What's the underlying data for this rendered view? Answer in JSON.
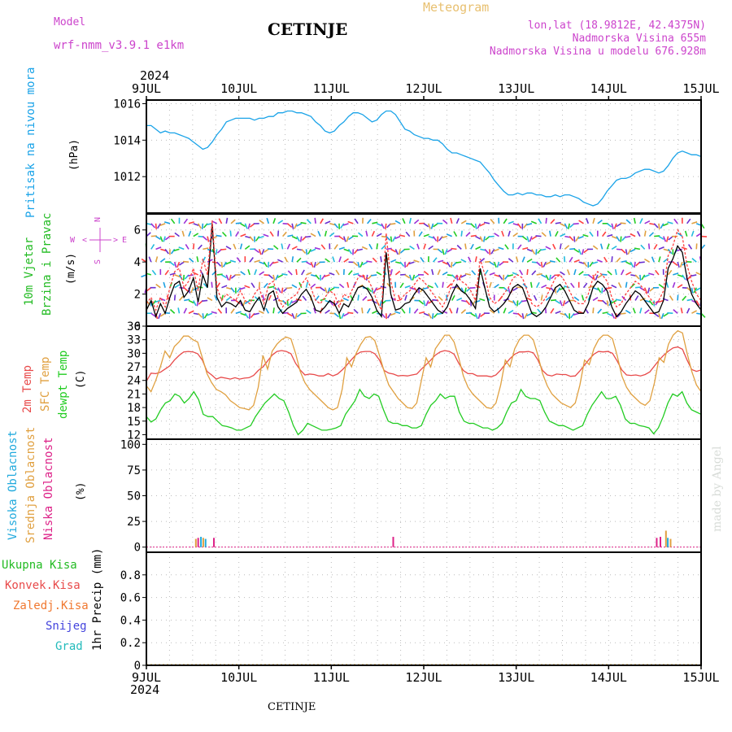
{
  "header": {
    "model_label": "Model",
    "model_name": "wrf-nmm_v3.9.1  e1km",
    "title": "CETINJE",
    "meteogram": "Meteogram",
    "lonlat": "lon,lat (18.9812E, 42.4375N)",
    "altitude": "Nadmorska Visina 655m",
    "model_altitude": "Nadmorska Visina u modelu 676.928m",
    "year_top": "2024",
    "year_bottom": "2024",
    "footer": "CETINJE",
    "watermark": "made by Angel"
  },
  "colors": {
    "pressure": "#1aa3e8",
    "temp2m": "#e84a4a",
    "sfc": "#e0a040",
    "dew": "#22cc22",
    "windspd": "#000000",
    "gust": "#ff4040",
    "label_pressure": "#1aa3e8",
    "label_wind": "#22bb22",
    "label_purple": "#cc44cc",
    "label_cloud_high": "#22aadd",
    "label_cloud_mid": "#e0a040",
    "label_cloud_low": "#dd2288"
  },
  "chart_data": [
    {
      "type": "line",
      "panel": "pressure",
      "ylabel_left": "Pritisak na nivou mora",
      "unit": "(hPa)",
      "x_ticks": [
        "9JUL",
        "10JUL",
        "11JUL",
        "12JUL",
        "13JUL",
        "14JUL",
        "15JUL"
      ],
      "ylim": [
        1010,
        1016.2
      ],
      "y_ticks": [
        1012,
        1014,
        1016
      ],
      "series": [
        {
          "key": "pressure",
          "values": [
            1014.8,
            1014.8,
            1014.6,
            1014.4,
            1014.5,
            1014.4,
            1014.4,
            1014.3,
            1014.2,
            1014.1,
            1013.9,
            1013.7,
            1013.5,
            1013.6,
            1013.9,
            1014.3,
            1014.6,
            1015.0,
            1015.1,
            1015.2,
            1015.2,
            1015.2,
            1015.2,
            1015.1,
            1015.2,
            1015.2,
            1015.3,
            1015.3,
            1015.5,
            1015.5,
            1015.6,
            1015.6,
            1015.5,
            1015.5,
            1015.4,
            1015.3,
            1015.0,
            1014.8,
            1014.5,
            1014.4,
            1014.5,
            1014.8,
            1015.0,
            1015.3,
            1015.5,
            1015.5,
            1015.4,
            1015.2,
            1015.0,
            1015.1,
            1015.4,
            1015.6,
            1015.6,
            1015.4,
            1015.0,
            1014.6,
            1014.5,
            1014.3,
            1014.2,
            1014.1,
            1014.1,
            1014.0,
            1014.0,
            1013.8,
            1013.5,
            1013.3,
            1013.3,
            1013.2,
            1013.1,
            1013.0,
            1012.9,
            1012.8,
            1012.5,
            1012.2,
            1011.8,
            1011.5,
            1011.2,
            1011.0,
            1011.0,
            1011.1,
            1011.0,
            1011.1,
            1011.1,
            1011.0,
            1011.0,
            1010.9,
            1010.9,
            1011.0,
            1010.9,
            1011.0,
            1011.0,
            1010.9,
            1010.8,
            1010.6,
            1010.5,
            1010.4,
            1010.5,
            1010.8,
            1011.2,
            1011.5,
            1011.8,
            1011.9,
            1011.9,
            1012.0,
            1012.2,
            1012.3,
            1012.4,
            1012.4,
            1012.3,
            1012.2,
            1012.3,
            1012.6,
            1013.0,
            1013.3,
            1013.4,
            1013.3,
            1013.2,
            1013.2,
            1013.1
          ]
        }
      ]
    },
    {
      "type": "line",
      "panel": "wind",
      "ylabel_left_1": "10m Vjetar",
      "ylabel_left_2": "Brzina i Pravac",
      "unit": "(m/s)",
      "compass": {
        "n": "N",
        "s": "S",
        "w": "W",
        "e": "E",
        "arrow_left": "<",
        "arrow_right": ">"
      },
      "ylim": [
        0,
        7
      ],
      "y_ticks": [
        0,
        2,
        4,
        6
      ],
      "series": [
        {
          "key": "windspd",
          "values": [
            1.0,
            1.6,
            0.6,
            1.4,
            0.8,
            1.8,
            2.6,
            2.8,
            1.8,
            2.2,
            3.0,
            1.5,
            3.2,
            2.4,
            6.4,
            1.8,
            1.2,
            1.5,
            1.4,
            1.2,
            1.6,
            1.0,
            0.9,
            1.4,
            1.8,
            1.0,
            2.0,
            2.2,
            1.2,
            0.8,
            1.1,
            1.3,
            1.5,
            2.0,
            2.3,
            1.8,
            1.0,
            0.9,
            1.2,
            1.6,
            1.4,
            0.8,
            1.4,
            1.2,
            1.8,
            2.4,
            2.5,
            2.3,
            1.8,
            1.0,
            0.6,
            4.6,
            2.0,
            1.0,
            1.1,
            1.4,
            1.5,
            2.0,
            2.4,
            2.2,
            1.8,
            1.4,
            1.0,
            0.8,
            1.2,
            2.0,
            2.6,
            2.2,
            2.0,
            1.6,
            1.1,
            3.6,
            2.4,
            1.2,
            0.9,
            1.1,
            1.4,
            1.8,
            2.4,
            2.6,
            2.4,
            1.6,
            0.8,
            0.6,
            0.8,
            1.2,
            1.8,
            2.4,
            2.6,
            2.2,
            1.6,
            1.0,
            0.8,
            0.8,
            1.4,
            2.4,
            2.8,
            2.6,
            2.2,
            1.2,
            0.6,
            0.9,
            1.4,
            1.8,
            2.2,
            2.0,
            1.6,
            1.2,
            0.8,
            0.9,
            1.6,
            3.6,
            4.2,
            5.0,
            4.6,
            3.0,
            2.0,
            1.4,
            1.0
          ],
          "name": ""
        },
        {
          "key": "gust",
          "values": [
            1.4,
            1.8,
            1.0,
            1.8,
            1.2,
            2.4,
            3.4,
            3.6,
            2.4,
            2.8,
            3.6,
            2.2,
            4.2,
            3.2,
            6.6,
            2.4,
            1.6,
            2.0,
            1.8,
            1.6,
            2.2,
            1.6,
            1.4,
            2.0,
            2.4,
            1.4,
            2.6,
            2.8,
            1.8,
            1.2,
            1.6,
            1.8,
            2.0,
            2.6,
            3.0,
            2.4,
            1.6,
            1.4,
            1.8,
            2.2,
            2.0,
            1.2,
            2.0,
            1.8,
            2.4,
            3.0,
            3.2,
            3.0,
            2.4,
            1.6,
            1.0,
            5.8,
            2.8,
            1.6,
            1.6,
            2.0,
            2.2,
            2.6,
            3.0,
            2.8,
            2.4,
            2.0,
            1.6,
            1.2,
            1.8,
            2.6,
            3.2,
            2.8,
            2.6,
            2.2,
            1.6,
            4.2,
            3.2,
            1.8,
            1.4,
            1.6,
            2.0,
            2.4,
            3.0,
            3.2,
            3.0,
            2.2,
            1.4,
            1.2,
            1.4,
            1.8,
            2.4,
            3.0,
            3.2,
            2.8,
            2.2,
            1.6,
            1.4,
            1.4,
            2.0,
            3.0,
            3.4,
            3.2,
            2.8,
            1.8,
            1.2,
            1.4,
            2.0,
            2.4,
            2.8,
            2.6,
            2.2,
            1.8,
            1.4,
            1.6,
            2.2,
            4.4,
            5.0,
            6.0,
            5.6,
            3.8,
            2.8,
            2.0,
            1.6
          ]
        }
      ]
    },
    {
      "type": "line",
      "panel": "temperature",
      "ylabel_left_1": "2m Temp",
      "ylabel_left_2": "SFC Temp",
      "ylabel_left_3": "dewpt Temp",
      "unit": "(C)",
      "ylim": [
        11,
        36
      ],
      "y_ticks": [
        12,
        15,
        18,
        21,
        24,
        27,
        30,
        33,
        36
      ],
      "series": [
        {
          "key": "temp2m",
          "values": [
            23.8,
            25.6,
            25.5,
            25.8,
            26.5,
            27.2,
            28.5,
            29.5,
            30.3,
            30.4,
            30.3,
            29.9,
            28.5,
            26.0,
            25.2,
            24.3,
            24.7,
            24.5,
            24.3,
            24.6,
            24.3,
            24.5,
            24.6,
            25.1,
            26.2,
            27.0,
            28.3,
            29.6,
            30.4,
            30.6,
            30.4,
            29.9,
            27.8,
            26.3,
            25.2,
            25.4,
            25.3,
            25.0,
            25.0,
            25.5,
            25.0,
            25.4,
            26.3,
            27.4,
            28.6,
            29.7,
            30.3,
            30.4,
            30.4,
            29.9,
            28.5,
            26.2,
            25.6,
            25.4,
            25.0,
            25.1,
            25.0,
            25.2,
            25.4,
            26.5,
            27.5,
            28.5,
            29.6,
            30.3,
            30.6,
            30.4,
            29.8,
            27.8,
            26.2,
            25.5,
            25.5,
            25.0,
            25.0,
            25.0,
            24.8,
            25.2,
            26.3,
            27.6,
            28.8,
            29.8,
            30.3,
            30.3,
            30.4,
            30.1,
            28.5,
            26.2,
            25.2,
            25.0,
            25.4,
            25.3,
            25.3,
            24.9,
            25.0,
            26.1,
            27.4,
            28.7,
            29.8,
            30.4,
            30.3,
            30.4,
            30.0,
            28.3,
            26.3,
            25.2,
            25.1,
            25.2,
            25.0,
            25.3,
            25.9,
            27.2,
            28.5,
            29.6,
            30.5,
            31.2,
            31.4,
            30.9,
            28.5,
            26.4,
            26.0,
            26.3
          ]
        },
        {
          "key": "sfc",
          "values": [
            22.8,
            21.5,
            24.0,
            27.0,
            30.5,
            29.0,
            31.5,
            32.5,
            33.8,
            33.8,
            33.0,
            32.5,
            29.0,
            25.5,
            23.5,
            22.0,
            21.5,
            20.8,
            19.5,
            18.8,
            18.0,
            17.8,
            17.5,
            18.5,
            22.5,
            29.5,
            26.5,
            30.5,
            32.0,
            33.0,
            33.6,
            33.2,
            30.0,
            26.0,
            23.5,
            22.0,
            21.0,
            20.0,
            19.0,
            18.0,
            17.5,
            18.0,
            22.0,
            29.0,
            27.0,
            30.0,
            32.0,
            33.5,
            33.7,
            32.8,
            29.5,
            26.0,
            23.0,
            21.5,
            20.0,
            19.0,
            18.0,
            17.8,
            19.0,
            24.0,
            29.0,
            27.0,
            31.0,
            32.5,
            34.0,
            34.0,
            32.5,
            29.0,
            25.0,
            22.5,
            21.0,
            20.0,
            19.0,
            18.0,
            17.8,
            19.0,
            23.0,
            28.5,
            27.0,
            31.0,
            33.0,
            34.0,
            34.0,
            33.0,
            29.5,
            25.5,
            22.8,
            21.0,
            20.0,
            19.0,
            18.5,
            18.0,
            19.0,
            23.0,
            28.5,
            27.5,
            31.0,
            33.0,
            34.0,
            34.0,
            33.2,
            29.5,
            25.0,
            22.5,
            21.0,
            20.0,
            19.0,
            18.5,
            19.5,
            23.5,
            29.0,
            28.0,
            32.0,
            34.0,
            35.0,
            34.5,
            30.0,
            26.0,
            23.0,
            21.5
          ]
        },
        {
          "key": "dew",
          "values": [
            16.0,
            14.8,
            15.5,
            17.5,
            19.0,
            19.5,
            21.0,
            20.5,
            19.0,
            20.0,
            21.5,
            19.8,
            16.5,
            16.0,
            16.0,
            15.0,
            14.0,
            13.8,
            13.5,
            13.0,
            13.0,
            13.5,
            14.0,
            16.0,
            17.5,
            19.0,
            20.0,
            21.0,
            20.0,
            19.5,
            17.0,
            14.0,
            12.0,
            13.0,
            14.5,
            14.0,
            13.5,
            13.0,
            13.0,
            13.2,
            13.5,
            14.0,
            16.5,
            18.0,
            19.5,
            22.0,
            20.5,
            20.0,
            21.0,
            20.5,
            17.5,
            15.0,
            14.5,
            14.5,
            14.0,
            14.0,
            13.5,
            13.5,
            14.0,
            16.5,
            18.5,
            19.5,
            21.0,
            20.0,
            20.5,
            20.5,
            17.0,
            15.0,
            14.5,
            14.5,
            14.0,
            13.5,
            13.5,
            13.0,
            13.5,
            14.5,
            17.0,
            19.0,
            19.5,
            22.0,
            20.5,
            20.0,
            20.0,
            19.5,
            17.0,
            15.0,
            14.5,
            14.0,
            14.0,
            13.5,
            13.0,
            13.5,
            14.0,
            16.5,
            18.5,
            20.0,
            21.5,
            20.0,
            20.0,
            20.5,
            18.5,
            15.5,
            14.5,
            14.5,
            14.0,
            13.8,
            13.5,
            12.2,
            13.5,
            16.0,
            19.0,
            21.0,
            20.5,
            21.5,
            19.0,
            17.5,
            17.0,
            16.5
          ]
        }
      ]
    },
    {
      "type": "bar",
      "panel": "cloud",
      "ylabel_left_1": "Visoka Oblacnost",
      "ylabel_left_2": "Srednja Oblacnost",
      "ylabel_left_3": "Niska Oblacnost",
      "unit": "(%)",
      "ylim": [
        -5,
        105
      ],
      "y_ticks": [
        0,
        25,
        50,
        75,
        100
      ],
      "bars": [
        {
          "t": 0.535,
          "value": 8,
          "key": "mid"
        },
        {
          "t": 0.56,
          "value": 9,
          "key": "low"
        },
        {
          "t": 0.59,
          "value": 10,
          "key": "high"
        },
        {
          "t": 0.615,
          "value": 9,
          "key": "mid"
        },
        {
          "t": 0.64,
          "value": 8,
          "key": "high"
        },
        {
          "t": 0.73,
          "value": 9,
          "key": "low"
        },
        {
          "t": 2.67,
          "value": 10,
          "key": "low"
        },
        {
          "t": 5.52,
          "value": 9,
          "key": "low"
        },
        {
          "t": 5.56,
          "value": 10,
          "key": "low"
        },
        {
          "t": 5.62,
          "value": 16,
          "key": "mid"
        },
        {
          "t": 5.64,
          "value": 9,
          "key": "high"
        },
        {
          "t": 5.67,
          "value": 8,
          "key": "mid"
        }
      ]
    },
    {
      "type": "bar",
      "panel": "precip",
      "labels": {
        "total": "Ukupna Kisa",
        "convective": "Konvek.Kisa",
        "frozen": "Zaledj.Kisa",
        "snow": "Snijeg",
        "hail": "Grad"
      },
      "label_colors": {
        "total": "#22bb22",
        "convective": "#e84a4a",
        "frozen": "#f07830",
        "snow": "#4444dd",
        "hail": "#22bbbb"
      },
      "ylabel": "1hr Precip (mm)",
      "ylim": [
        0,
        1
      ],
      "y_ticks": [
        "0",
        "0.2",
        "0.4",
        "0.6",
        "0.8"
      ],
      "values": []
    }
  ]
}
